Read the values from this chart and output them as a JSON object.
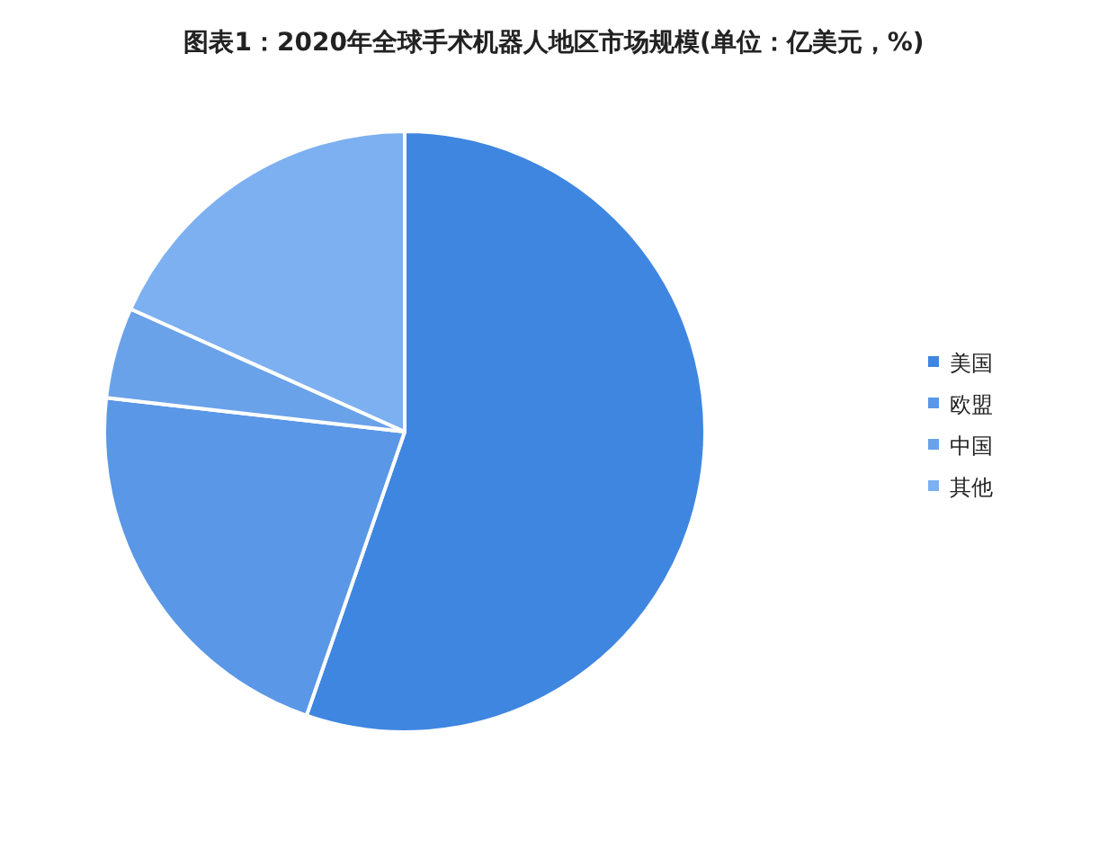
{
  "chart_data": {
    "type": "pie",
    "title": "图表1：2020年全球手术机器人地区市场规模(单位：亿美元，%)",
    "categories": [
      "美国",
      "欧盟",
      "中国",
      "其他"
    ],
    "values": [
      55.3,
      21.5,
      4.9,
      18.3
    ],
    "colors": [
      "#3f86e0",
      "#5a97e6",
      "#6aa2ea",
      "#7db0f0"
    ],
    "legend": "right"
  }
}
